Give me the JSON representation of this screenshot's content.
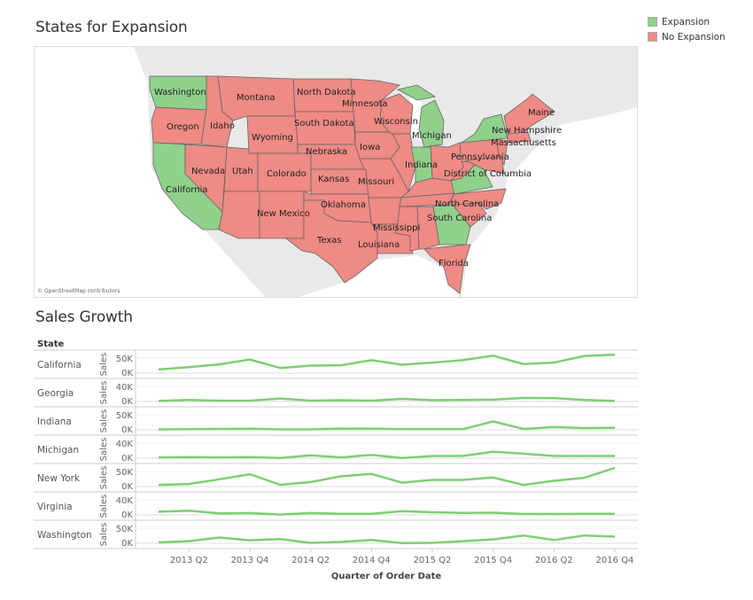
{
  "map_section": {
    "title": "States for Expansion",
    "credit": "© OpenStreetMap contributors",
    "legend": [
      {
        "label": "Expansion",
        "color": "#8fd18b"
      },
      {
        "label": "No Expansion",
        "color": "#ef8a84"
      }
    ],
    "states": [
      {
        "name": "Washington",
        "status": "Expansion"
      },
      {
        "name": "Oregon",
        "status": "No Expansion"
      },
      {
        "name": "California",
        "status": "Expansion"
      },
      {
        "name": "Idaho",
        "status": "No Expansion"
      },
      {
        "name": "Montana",
        "status": "No Expansion"
      },
      {
        "name": "Nevada",
        "status": "No Expansion"
      },
      {
        "name": "Utah",
        "status": "No Expansion"
      },
      {
        "name": "Wyoming",
        "status": "No Expansion"
      },
      {
        "name": "Colorado",
        "status": "No Expansion"
      },
      {
        "name": "New Mexico",
        "status": "No Expansion"
      },
      {
        "name": "North Dakota",
        "status": "No Expansion"
      },
      {
        "name": "South Dakota",
        "status": "No Expansion"
      },
      {
        "name": "Nebraska",
        "status": "No Expansion"
      },
      {
        "name": "Kansas",
        "status": "No Expansion"
      },
      {
        "name": "Oklahoma",
        "status": "No Expansion"
      },
      {
        "name": "Texas",
        "status": "No Expansion"
      },
      {
        "name": "Minnesota",
        "status": "No Expansion"
      },
      {
        "name": "Iowa",
        "status": "No Expansion"
      },
      {
        "name": "Missouri",
        "status": "No Expansion"
      },
      {
        "name": "Louisiana",
        "status": "No Expansion"
      },
      {
        "name": "Mississippi",
        "status": "No Expansion"
      },
      {
        "name": "Wisconsin",
        "status": "No Expansion"
      },
      {
        "name": "Michigan",
        "status": "Expansion"
      },
      {
        "name": "Indiana",
        "status": "Expansion"
      },
      {
        "name": "Pennsylvania",
        "status": "No Expansion"
      },
      {
        "name": "District of Columbia",
        "status": "No Expansion"
      },
      {
        "name": "North Carolina",
        "status": "No Expansion"
      },
      {
        "name": "South Carolina",
        "status": "No Expansion"
      },
      {
        "name": "Florida",
        "status": "No Expansion"
      },
      {
        "name": "New Hampshire",
        "status": "No Expansion"
      },
      {
        "name": "Massachusetts",
        "status": "No Expansion"
      },
      {
        "name": "Maine",
        "status": "No Expansion"
      }
    ]
  },
  "chart_section": {
    "title": "Sales Growth",
    "row_header": "State"
  },
  "chart_data": {
    "type": "line",
    "xlabel": "Quarter of Order Date",
    "ylabel": "Sales",
    "x": [
      "2013 Q1",
      "2013 Q2",
      "2013 Q3",
      "2013 Q4",
      "2014 Q1",
      "2014 Q2",
      "2014 Q3",
      "2014 Q4",
      "2015 Q1",
      "2015 Q2",
      "2015 Q3",
      "2015 Q4",
      "2016 Q1",
      "2016 Q2",
      "2016 Q3",
      "2016 Q4"
    ],
    "x_tick_labels": [
      "2013 Q2",
      "2013 Q4",
      "2014 Q2",
      "2014 Q4",
      "2015 Q2",
      "2015 Q4",
      "2016 Q2",
      "2016 Q4"
    ],
    "color": "#7dcf72",
    "series": [
      {
        "name": "California",
        "y_ticks": [
          "50K",
          "0K"
        ],
        "values": [
          12,
          20,
          29,
          45,
          17,
          25,
          26,
          43,
          28,
          35,
          43,
          58,
          30,
          35,
          57,
          61
        ]
      },
      {
        "name": "Georgia",
        "y_ticks": [
          "40K",
          "0K"
        ],
        "values": [
          1.5,
          4,
          2,
          2,
          8,
          2,
          3.5,
          2,
          7,
          3.5,
          4,
          5,
          9.5,
          9,
          4,
          1.5
        ]
      },
      {
        "name": "Indiana",
        "y_ticks": [
          "50K",
          "0K"
        ],
        "values": [
          1.5,
          2,
          3,
          3.5,
          1.5,
          1.5,
          4,
          4,
          2,
          2,
          2,
          28,
          3,
          9,
          6,
          7
        ]
      },
      {
        "name": "Michigan",
        "y_ticks": [
          "40K",
          "0K"
        ],
        "values": [
          2,
          3,
          2,
          3,
          0.5,
          7.5,
          2,
          9,
          0.5,
          6,
          6,
          17,
          12,
          6,
          6,
          6
        ]
      },
      {
        "name": "New York",
        "y_ticks": [
          "50K",
          "0K"
        ],
        "values": [
          5.5,
          8.5,
          24,
          41,
          6,
          15,
          34,
          42,
          13,
          22,
          22,
          30,
          5.5,
          19,
          29,
          62
        ]
      },
      {
        "name": "Virginia",
        "y_ticks": [
          "40K",
          "0K"
        ],
        "values": [
          8.5,
          11,
          4,
          5,
          1,
          5,
          3,
          3,
          10,
          7,
          5.5,
          6,
          2.5,
          2.5,
          3,
          3
        ]
      },
      {
        "name": "Washington",
        "y_ticks": [
          "50K",
          "0K"
        ],
        "values": [
          3,
          7,
          19,
          10,
          14,
          1.5,
          4.5,
          11,
          1,
          1.5,
          7,
          13,
          26,
          11,
          26,
          22
        ]
      }
    ]
  }
}
